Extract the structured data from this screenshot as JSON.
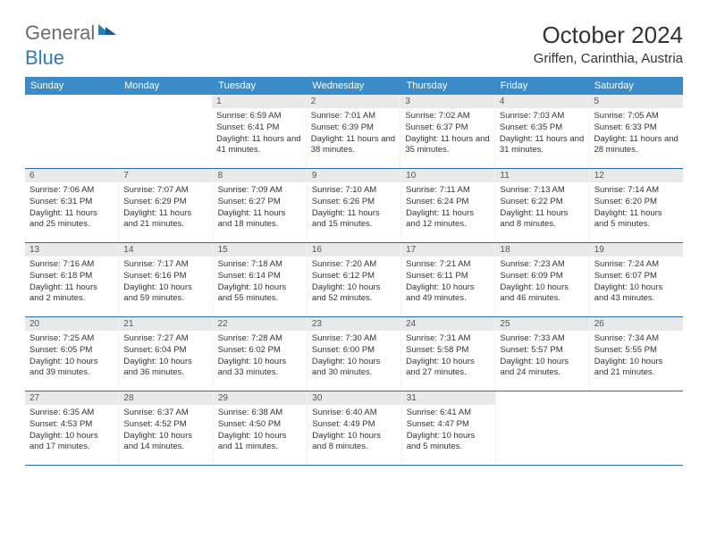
{
  "logo": {
    "general": "General",
    "blue": "Blue"
  },
  "title": "October 2024",
  "location": "Griffen, Carinthia, Austria",
  "colors": {
    "header_bg": "#3b8bc9",
    "header_text": "#ffffff",
    "daynum_bg": "#e9e9e9",
    "daynum_text": "#555555",
    "body_text": "#333333",
    "week_border": "#2e6ca3",
    "logo_gray": "#6b6b6b",
    "logo_blue": "#2e7cc0"
  },
  "days_of_week": [
    "Sunday",
    "Monday",
    "Tuesday",
    "Wednesday",
    "Thursday",
    "Friday",
    "Saturday"
  ],
  "weeks": [
    [
      null,
      null,
      {
        "n": "1",
        "sr": "6:59 AM",
        "ss": "6:41 PM",
        "dl": "11 hours and 41 minutes."
      },
      {
        "n": "2",
        "sr": "7:01 AM",
        "ss": "6:39 PM",
        "dl": "11 hours and 38 minutes."
      },
      {
        "n": "3",
        "sr": "7:02 AM",
        "ss": "6:37 PM",
        "dl": "11 hours and 35 minutes."
      },
      {
        "n": "4",
        "sr": "7:03 AM",
        "ss": "6:35 PM",
        "dl": "11 hours and 31 minutes."
      },
      {
        "n": "5",
        "sr": "7:05 AM",
        "ss": "6:33 PM",
        "dl": "11 hours and 28 minutes."
      }
    ],
    [
      {
        "n": "6",
        "sr": "7:06 AM",
        "ss": "6:31 PM",
        "dl": "11 hours and 25 minutes."
      },
      {
        "n": "7",
        "sr": "7:07 AM",
        "ss": "6:29 PM",
        "dl": "11 hours and 21 minutes."
      },
      {
        "n": "8",
        "sr": "7:09 AM",
        "ss": "6:27 PM",
        "dl": "11 hours and 18 minutes."
      },
      {
        "n": "9",
        "sr": "7:10 AM",
        "ss": "6:26 PM",
        "dl": "11 hours and 15 minutes."
      },
      {
        "n": "10",
        "sr": "7:11 AM",
        "ss": "6:24 PM",
        "dl": "11 hours and 12 minutes."
      },
      {
        "n": "11",
        "sr": "7:13 AM",
        "ss": "6:22 PM",
        "dl": "11 hours and 8 minutes."
      },
      {
        "n": "12",
        "sr": "7:14 AM",
        "ss": "6:20 PM",
        "dl": "11 hours and 5 minutes."
      }
    ],
    [
      {
        "n": "13",
        "sr": "7:16 AM",
        "ss": "6:18 PM",
        "dl": "11 hours and 2 minutes."
      },
      {
        "n": "14",
        "sr": "7:17 AM",
        "ss": "6:16 PM",
        "dl": "10 hours and 59 minutes."
      },
      {
        "n": "15",
        "sr": "7:18 AM",
        "ss": "6:14 PM",
        "dl": "10 hours and 55 minutes."
      },
      {
        "n": "16",
        "sr": "7:20 AM",
        "ss": "6:12 PM",
        "dl": "10 hours and 52 minutes."
      },
      {
        "n": "17",
        "sr": "7:21 AM",
        "ss": "6:11 PM",
        "dl": "10 hours and 49 minutes."
      },
      {
        "n": "18",
        "sr": "7:23 AM",
        "ss": "6:09 PM",
        "dl": "10 hours and 46 minutes."
      },
      {
        "n": "19",
        "sr": "7:24 AM",
        "ss": "6:07 PM",
        "dl": "10 hours and 43 minutes."
      }
    ],
    [
      {
        "n": "20",
        "sr": "7:25 AM",
        "ss": "6:05 PM",
        "dl": "10 hours and 39 minutes."
      },
      {
        "n": "21",
        "sr": "7:27 AM",
        "ss": "6:04 PM",
        "dl": "10 hours and 36 minutes."
      },
      {
        "n": "22",
        "sr": "7:28 AM",
        "ss": "6:02 PM",
        "dl": "10 hours and 33 minutes."
      },
      {
        "n": "23",
        "sr": "7:30 AM",
        "ss": "6:00 PM",
        "dl": "10 hours and 30 minutes."
      },
      {
        "n": "24",
        "sr": "7:31 AM",
        "ss": "5:58 PM",
        "dl": "10 hours and 27 minutes."
      },
      {
        "n": "25",
        "sr": "7:33 AM",
        "ss": "5:57 PM",
        "dl": "10 hours and 24 minutes."
      },
      {
        "n": "26",
        "sr": "7:34 AM",
        "ss": "5:55 PM",
        "dl": "10 hours and 21 minutes."
      }
    ],
    [
      {
        "n": "27",
        "sr": "6:35 AM",
        "ss": "4:53 PM",
        "dl": "10 hours and 17 minutes."
      },
      {
        "n": "28",
        "sr": "6:37 AM",
        "ss": "4:52 PM",
        "dl": "10 hours and 14 minutes."
      },
      {
        "n": "29",
        "sr": "6:38 AM",
        "ss": "4:50 PM",
        "dl": "10 hours and 11 minutes."
      },
      {
        "n": "30",
        "sr": "6:40 AM",
        "ss": "4:49 PM",
        "dl": "10 hours and 8 minutes."
      },
      {
        "n": "31",
        "sr": "6:41 AM",
        "ss": "4:47 PM",
        "dl": "10 hours and 5 minutes."
      },
      null,
      null
    ]
  ],
  "labels": {
    "sunrise": "Sunrise:",
    "sunset": "Sunset:",
    "daylight": "Daylight:"
  }
}
